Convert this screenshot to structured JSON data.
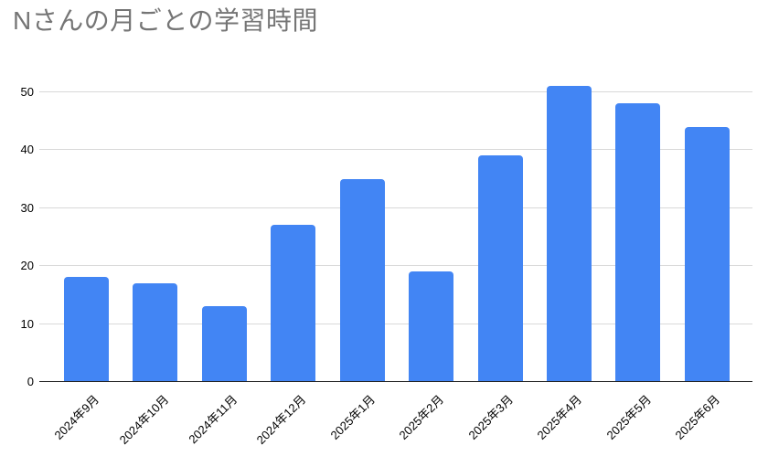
{
  "colors": {
    "bar": "#4285F4",
    "gridline": "#d9d9d9",
    "baseline": "#212121",
    "title_text": "#757575",
    "axis_text": "#000000",
    "background": "#ffffff"
  },
  "chart_data": {
    "type": "bar",
    "title": "Nさんの月ごとの学習時間",
    "categories": [
      "2024年9月",
      "2024年10月",
      "2024年11月",
      "2024年12月",
      "2025年1月",
      "2025年2月",
      "2025年3月",
      "2025年4月",
      "2025年5月",
      "2025年6月"
    ],
    "values": [
      18,
      17,
      13,
      27,
      35,
      19,
      39,
      51,
      48,
      44
    ],
    "xlabel": "",
    "ylabel": "",
    "y_ticks": [
      0,
      10,
      20,
      30,
      40,
      50
    ],
    "ylim": [
      0,
      55
    ],
    "grid": true,
    "legend": "none",
    "x_tick_rotation_deg": 45
  }
}
